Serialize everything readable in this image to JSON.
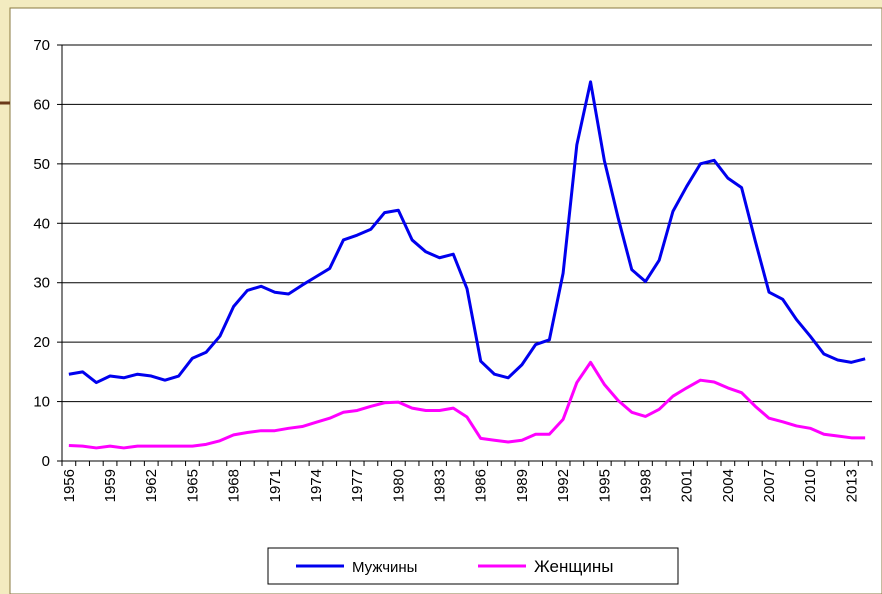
{
  "chart_data": {
    "type": "line",
    "categories": [
      "1956",
      null,
      null,
      "1959",
      null,
      null,
      "1962",
      null,
      null,
      "1965",
      null,
      null,
      "1968",
      null,
      null,
      "1971",
      null,
      null,
      "1974",
      null,
      null,
      "1977",
      null,
      null,
      "1980",
      null,
      null,
      "1983",
      null,
      null,
      "1986",
      null,
      null,
      "1989",
      null,
      null,
      "1992",
      null,
      null,
      "1995",
      null,
      null,
      "1998",
      null,
      null,
      "2001",
      null,
      null,
      "2004",
      null,
      null,
      "2007",
      null,
      null,
      "2010",
      null,
      null,
      "2013",
      null
    ],
    "series": [
      {
        "name": "Мужчины",
        "color": "#0000ee",
        "values": [
          14.6,
          15.0,
          13.2,
          14.3,
          14.0,
          14.6,
          14.3,
          13.6,
          14.3,
          17.3,
          18.3,
          21.0,
          26.0,
          28.7,
          29.4,
          28.4,
          28.1,
          29.6,
          31.0,
          32.4,
          37.2,
          38.0,
          39.0,
          41.8,
          42.2,
          37.2,
          35.2,
          34.2,
          34.8,
          29.0,
          16.8,
          14.6,
          14.0,
          16.2,
          19.6,
          20.4,
          31.6,
          53.2,
          63.8,
          50.6,
          41.0,
          32.2,
          30.2,
          33.8,
          42.0,
          46.2,
          50.0,
          50.6,
          47.6,
          46.0,
          37.0,
          28.4,
          27.2,
          23.8,
          21.0,
          18.0,
          17.0,
          16.6,
          17.2
        ]
      },
      {
        "name": "Женщины",
        "color": "#ff00ff",
        "values": [
          2.6,
          2.5,
          2.2,
          2.5,
          2.2,
          2.5,
          2.5,
          2.5,
          2.5,
          2.5,
          2.8,
          3.4,
          4.4,
          4.8,
          5.1,
          5.1,
          5.5,
          5.8,
          6.5,
          7.2,
          8.2,
          8.5,
          9.2,
          9.8,
          9.9,
          8.9,
          8.5,
          8.5,
          8.9,
          7.4,
          3.8,
          3.5,
          3.2,
          3.5,
          4.5,
          4.5,
          7.0,
          13.2,
          16.6,
          12.9,
          10.2,
          8.2,
          7.5,
          8.7,
          10.9,
          12.3,
          13.6,
          13.3,
          12.3,
          11.5,
          9.2,
          7.2,
          6.6,
          5.9,
          5.5,
          4.5,
          4.2,
          3.9,
          3.9
        ]
      }
    ],
    "ylim": [
      0,
      70
    ],
    "yticks": [
      0,
      10,
      20,
      30,
      40,
      50,
      60,
      70
    ],
    "grid": true,
    "legend": "bottom"
  }
}
